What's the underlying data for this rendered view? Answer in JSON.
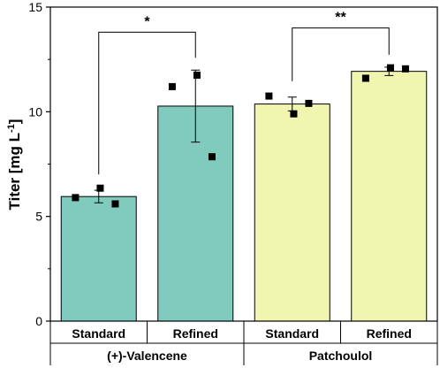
{
  "chart_data": {
    "type": "bar",
    "ylabel": "Titer [mg L",
    "ylabel_superscript": "-1",
    "ylabel_close": "]",
    "ylim": [
      0,
      15
    ],
    "yticks": [
      "0",
      "5",
      "10",
      "15"
    ],
    "ytick_values": [
      0,
      5,
      10,
      15
    ],
    "categories": [
      "Standard",
      "Refined",
      "Standard",
      "Refined"
    ],
    "groups": [
      {
        "label": "(+)-Valencene",
        "categories": [
          0,
          1
        ],
        "color": "#80cbbd"
      },
      {
        "label": "Patchoulol",
        "categories": [
          2,
          3
        ],
        "color": "#f0f5b0"
      }
    ],
    "values": [
      5.95,
      10.27,
      10.37,
      11.93
    ],
    "errors": [
      0.3,
      1.72,
      0.33,
      0.2
    ],
    "points": [
      [
        5.9,
        6.35,
        5.6
      ],
      [
        11.2,
        11.75,
        7.85
      ],
      [
        10.75,
        9.9,
        10.4
      ],
      [
        11.6,
        12.1,
        12.05
      ]
    ],
    "significance": [
      {
        "pair": [
          0,
          1
        ],
        "label": "*",
        "y": 13.8
      },
      {
        "pair": [
          2,
          3
        ],
        "label": "**",
        "y": 14.0
      }
    ]
  }
}
